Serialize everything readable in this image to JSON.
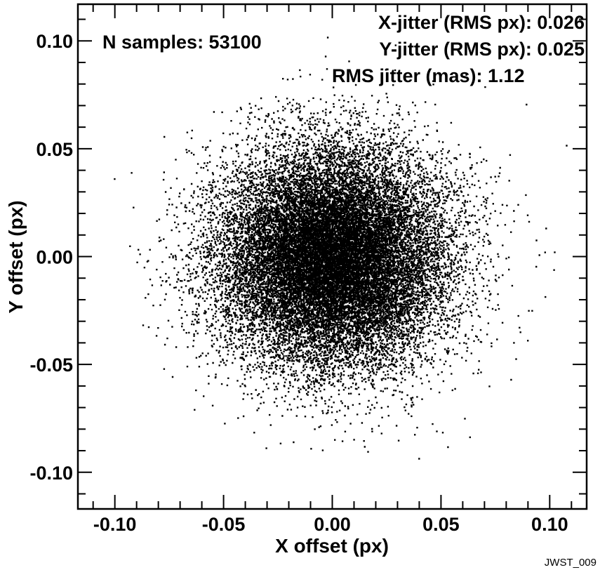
{
  "chart_data": {
    "type": "scatter",
    "title": "",
    "xlabel": "X offset (px)",
    "ylabel": "Y offset (px)",
    "xlim": [
      -0.117,
      0.117
    ],
    "ylim": [
      -0.117,
      0.117
    ],
    "x_ticks": [
      -0.1,
      -0.05,
      0.0,
      0.05,
      0.1
    ],
    "x_tick_labels": [
      "-0.10",
      "-0.05",
      "0.00",
      "0.05",
      "0.10"
    ],
    "y_ticks": [
      -0.1,
      -0.05,
      0.0,
      0.05,
      0.1
    ],
    "y_tick_labels": [
      "-0.10",
      "-0.05",
      "0.00",
      "0.05",
      "0.10"
    ],
    "grid": false,
    "legend": "none",
    "marker_color": "#000000",
    "series": [
      {
        "distribution": "2D gaussian",
        "center": [
          0.0,
          0.0
        ],
        "x_rms": 0.026,
        "y_rms": 0.025,
        "n_samples": 53100
      }
    ],
    "annotations": {
      "n_samples": "N samples: 53100",
      "x_jitter": "X-jitter (RMS px): 0.026",
      "y_jitter": "Y-jitter (RMS px): 0.025",
      "rms_jitter": "RMS jitter (mas): 1.12"
    },
    "credit": "JWST_009"
  }
}
